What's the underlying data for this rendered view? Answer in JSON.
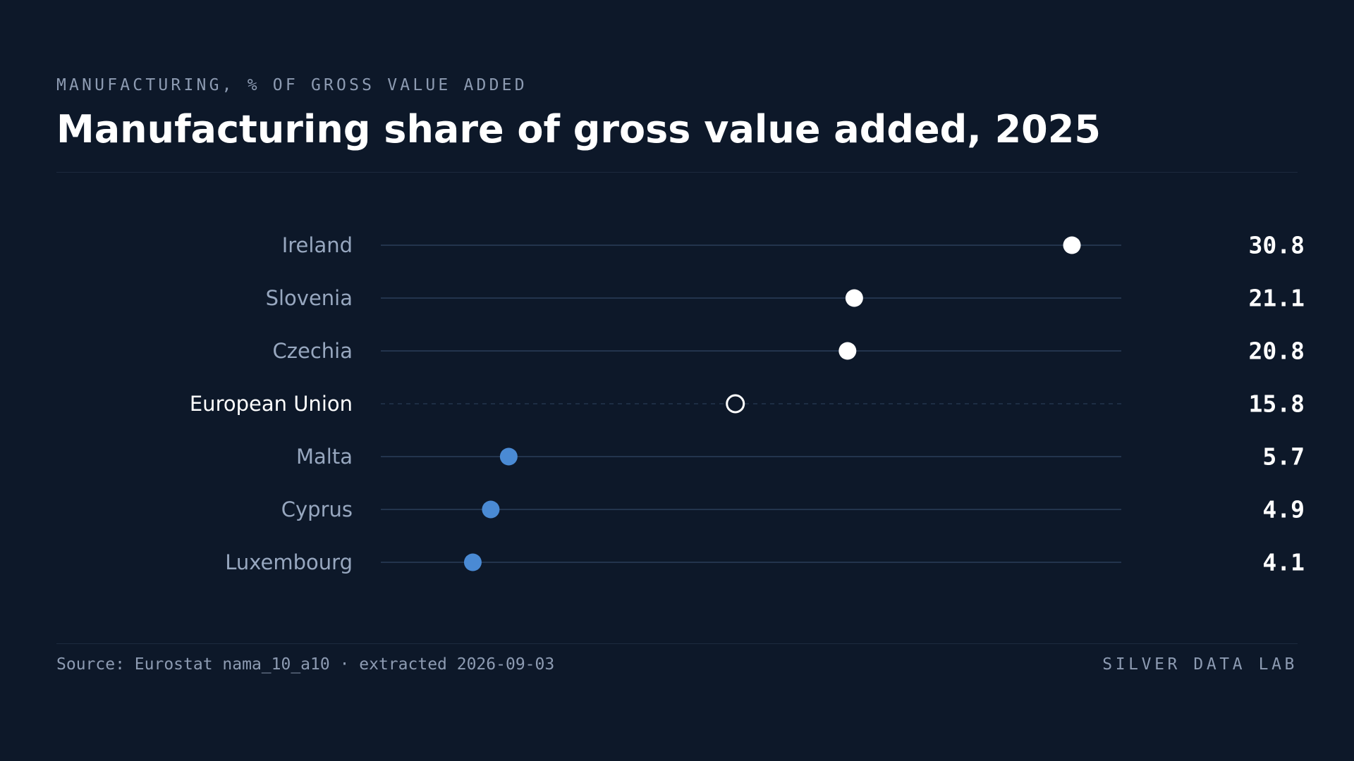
{
  "header": {
    "kicker": "MANUFACTURING, % OF GROSS VALUE ADDED"
  },
  "footer": {
    "source": "Source: Eurostat nama_10_a10 · extracted 2026-09-03",
    "brand": "SILVER DATA LAB"
  },
  "colors": {
    "background": "#0d1829",
    "high": "#ffffff",
    "low": "#4a8ad4",
    "reference": "#ffffff",
    "track": "#23344d"
  },
  "chart_data": {
    "type": "dot",
    "title": "Manufacturing share of gross value added, 2025",
    "xlabel": "",
    "ylabel": "",
    "xlim": [
      0,
      33
    ],
    "grid": false,
    "legend": "none",
    "categories": [
      "Ireland",
      "Slovenia",
      "Czechia",
      "European Union",
      "Malta",
      "Cyprus",
      "Luxembourg"
    ],
    "values": [
      30.8,
      21.1,
      20.8,
      15.8,
      5.7,
      4.9,
      4.1
    ],
    "value_labels": [
      "30.8",
      "21.1",
      "20.8",
      "15.8",
      "5.7",
      "4.9",
      "4.1"
    ],
    "reference_category": "European Union"
  }
}
